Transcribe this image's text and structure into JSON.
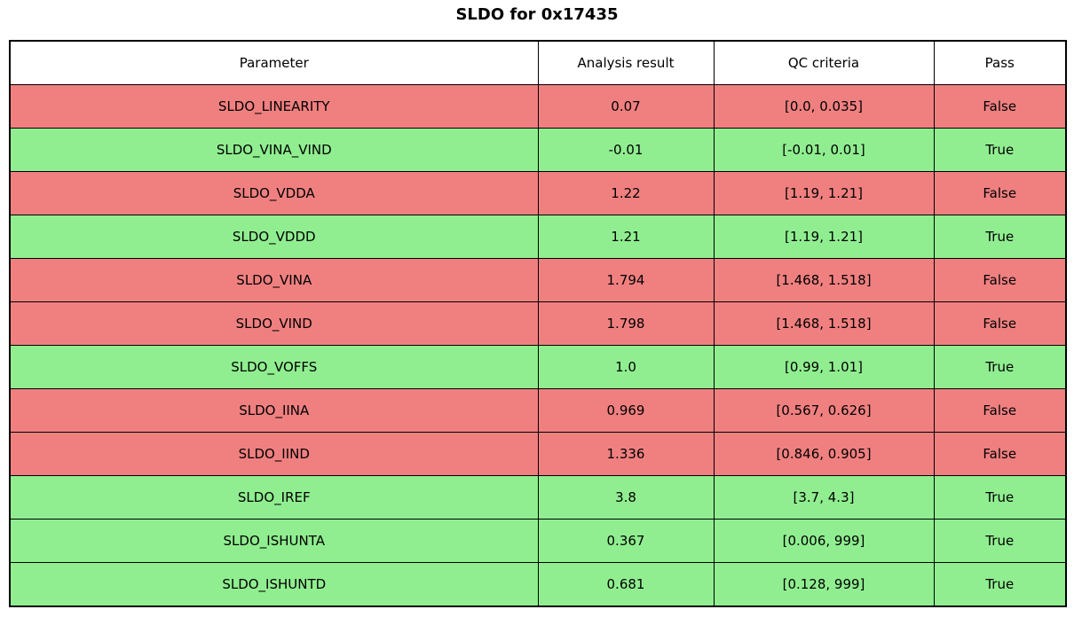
{
  "title": "SLDO for 0x17435",
  "colors": {
    "pass_row": "#90ee90",
    "fail_row": "#f08080",
    "header_bg": "#ffffff",
    "border": "#000000",
    "text": "#000000"
  },
  "table": {
    "columns": [
      "Parameter",
      "Analysis result",
      "QC criteria",
      "Pass"
    ],
    "rows": [
      {
        "parameter": "SLDO_LINEARITY",
        "result": "0.07",
        "criteria": "[0.0, 0.035]",
        "pass": "False"
      },
      {
        "parameter": "SLDO_VINA_VIND",
        "result": "-0.01",
        "criteria": "[-0.01, 0.01]",
        "pass": "True"
      },
      {
        "parameter": "SLDO_VDDA",
        "result": "1.22",
        "criteria": "[1.19, 1.21]",
        "pass": "False"
      },
      {
        "parameter": "SLDO_VDDD",
        "result": "1.21",
        "criteria": "[1.19, 1.21]",
        "pass": "True"
      },
      {
        "parameter": "SLDO_VINA",
        "result": "1.794",
        "criteria": "[1.468, 1.518]",
        "pass": "False"
      },
      {
        "parameter": "SLDO_VIND",
        "result": "1.798",
        "criteria": "[1.468, 1.518]",
        "pass": "False"
      },
      {
        "parameter": "SLDO_VOFFS",
        "result": "1.0",
        "criteria": "[0.99, 1.01]",
        "pass": "True"
      },
      {
        "parameter": "SLDO_IINA",
        "result": "0.969",
        "criteria": "[0.567, 0.626]",
        "pass": "False"
      },
      {
        "parameter": "SLDO_IIND",
        "result": "1.336",
        "criteria": "[0.846, 0.905]",
        "pass": "False"
      },
      {
        "parameter": "SLDO_IREF",
        "result": "3.8",
        "criteria": "[3.7, 4.3]",
        "pass": "True"
      },
      {
        "parameter": "SLDO_ISHUNTA",
        "result": "0.367",
        "criteria": "[0.006, 999]",
        "pass": "True"
      },
      {
        "parameter": "SLDO_ISHUNTD",
        "result": "0.681",
        "criteria": "[0.128, 999]",
        "pass": "True"
      }
    ]
  },
  "chart_data": {
    "type": "table",
    "title": "SLDO for 0x17435",
    "columns": [
      "Parameter",
      "Analysis result",
      "QC criteria",
      "Pass"
    ],
    "rows": [
      [
        "SLDO_LINEARITY",
        0.07,
        "[0.0, 0.035]",
        false
      ],
      [
        "SLDO_VINA_VIND",
        -0.01,
        "[-0.01, 0.01]",
        true
      ],
      [
        "SLDO_VDDA",
        1.22,
        "[1.19, 1.21]",
        false
      ],
      [
        "SLDO_VDDD",
        1.21,
        "[1.19, 1.21]",
        true
      ],
      [
        "SLDO_VINA",
        1.794,
        "[1.468, 1.518]",
        false
      ],
      [
        "SLDO_VIND",
        1.798,
        "[1.468, 1.518]",
        false
      ],
      [
        "SLDO_VOFFS",
        1.0,
        "[0.99, 1.01]",
        true
      ],
      [
        "SLDO_IINA",
        0.969,
        "[0.567, 0.626]",
        false
      ],
      [
        "SLDO_IIND",
        1.336,
        "[0.846, 0.905]",
        false
      ],
      [
        "SLDO_IREF",
        3.8,
        "[3.7, 4.3]",
        true
      ],
      [
        "SLDO_ISHUNTA",
        0.367,
        "[0.006, 999]",
        true
      ],
      [
        "SLDO_ISHUNTD",
        0.681,
        "[0.128, 999]",
        true
      ]
    ],
    "row_color_rule": "pass=true -> #90ee90 (green), pass=false -> #f08080 (red)",
    "legend_position": "none",
    "grid": "full-borders"
  }
}
